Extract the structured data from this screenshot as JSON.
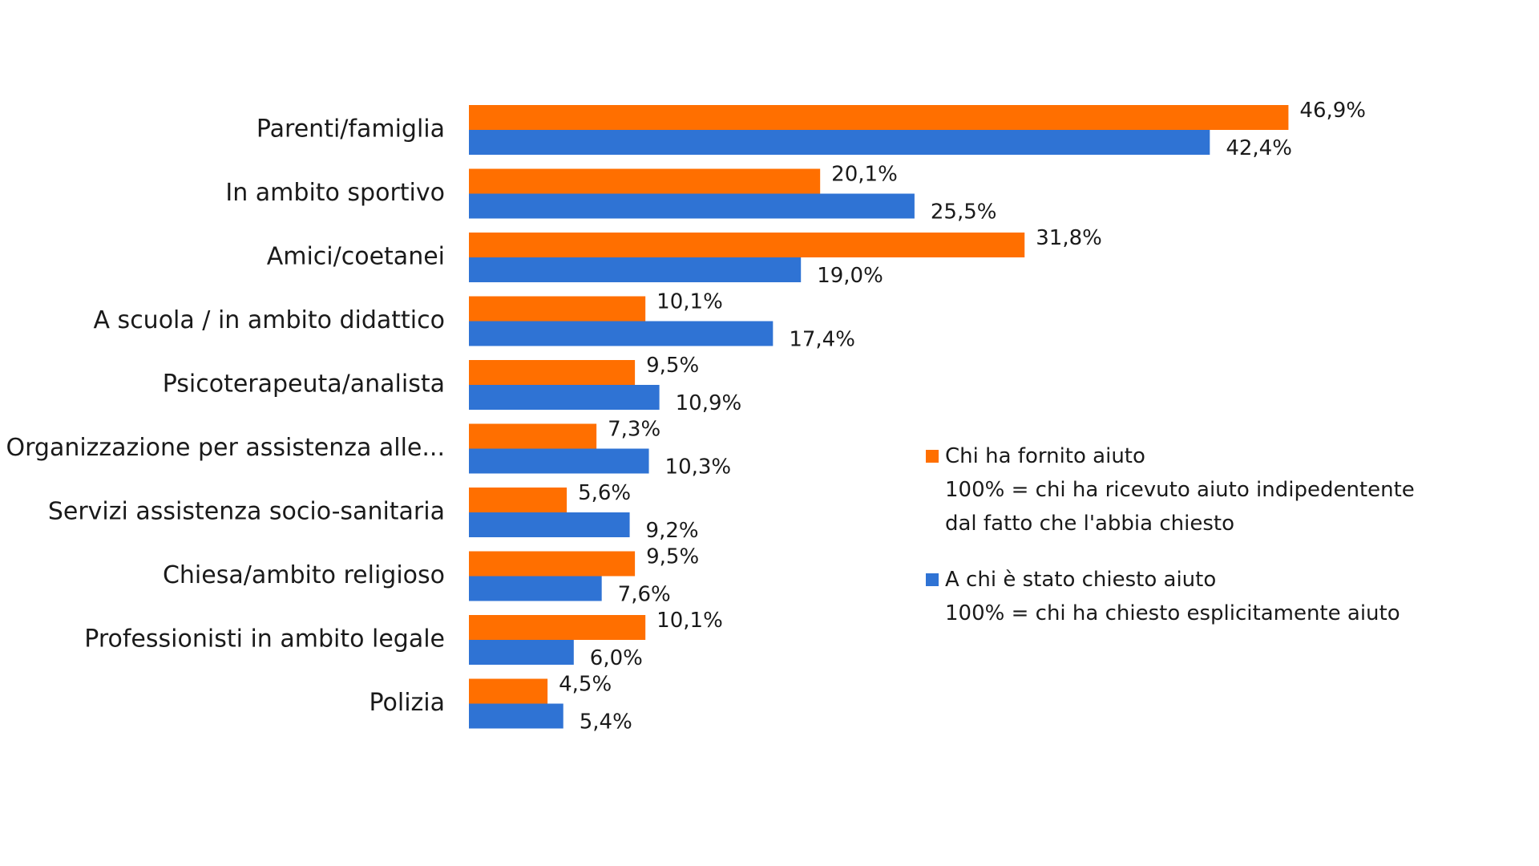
{
  "chart_data": {
    "type": "bar",
    "orientation": "horizontal",
    "categories": [
      "Parenti/famiglia",
      "In ambito sportivo",
      "Amici/coetanei",
      "A scuola / in ambito didattico",
      "Psicoterapeuta/analista",
      "Organizzazione per assistenza alle...",
      "Servizi assistenza socio-sanitaria",
      "Chiesa/ambito religioso",
      "Professionisti in ambito legale",
      "Polizia"
    ],
    "series": [
      {
        "name": "Chi ha fornito aiuto",
        "color": "#FF6F00",
        "values": [
          46.9,
          20.1,
          31.8,
          10.1,
          9.5,
          7.3,
          5.6,
          9.5,
          10.1,
          4.5
        ],
        "labels": [
          "46,9%",
          "20,1%",
          "31,8%",
          "10,1%",
          "9,5%",
          "7,3%",
          "5,6%",
          "9,5%",
          "10,1%",
          "4,5%"
        ]
      },
      {
        "name": "A chi è stato chiesto aiuto",
        "color": "#2F73D4",
        "values": [
          42.4,
          25.5,
          19.0,
          17.4,
          10.9,
          10.3,
          9.2,
          7.6,
          6.0,
          5.4
        ],
        "labels": [
          "42,4%",
          "25,5%",
          "19,0%",
          "17,4%",
          "10,9%",
          "10,3%",
          "9,2%",
          "7,6%",
          "6,0%",
          "5,4%"
        ]
      }
    ],
    "xlim": [
      0,
      50
    ],
    "grid": false,
    "legend_position": "right",
    "legend": [
      {
        "name": "Chi ha fornito aiuto",
        "note": "100% = chi ha ricevuto aiuto indipedentente dal fatto che l'abbia chiesto"
      },
      {
        "name": "A chi è stato chiesto aiuto",
        "note": "100% = chi ha chiesto esplicitamente aiuto"
      }
    ]
  }
}
